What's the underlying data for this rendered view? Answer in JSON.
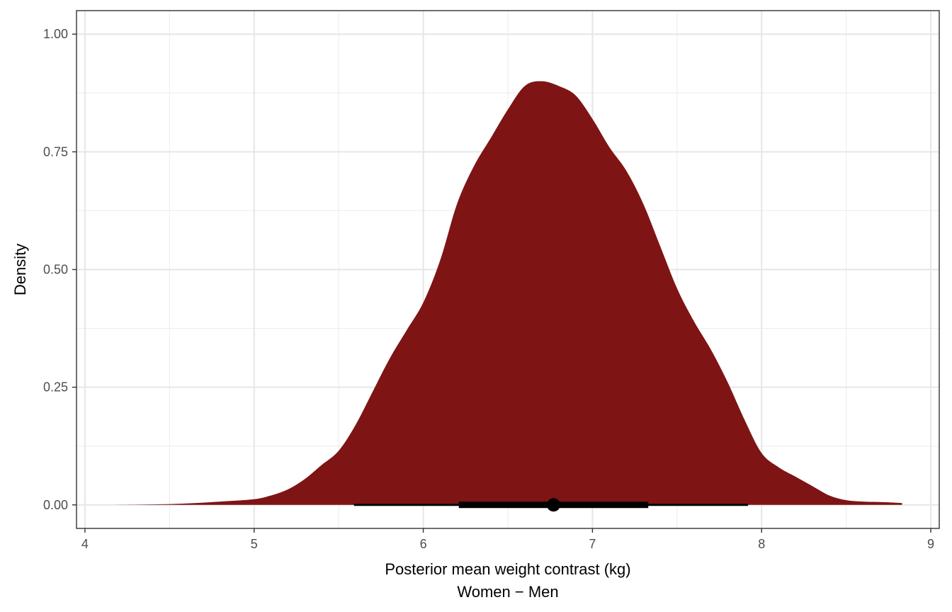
{
  "chart_data": {
    "type": "area",
    "xlabel": "Posterior mean weight contrast (kg)",
    "xlabel_line2": "Women − Men",
    "ylabel": "Density",
    "xlim": [
      3.95,
      9.05
    ],
    "ylim": [
      -0.05,
      1.05
    ],
    "x_ticks": [
      4,
      5,
      6,
      7,
      8,
      9
    ],
    "x_tick_labels": [
      "4",
      "5",
      "6",
      "7",
      "8",
      "9"
    ],
    "y_ticks": [
      0,
      0.25,
      0.5,
      0.75,
      1.0
    ],
    "y_tick_labels": [
      "0.00",
      "0.25",
      "0.50",
      "0.75",
      "1.00"
    ],
    "grid": true,
    "fill_color": "#7f1414",
    "density": {
      "x": [
        4.15,
        4.4,
        4.6,
        4.8,
        5.0,
        5.1,
        5.2,
        5.3,
        5.4,
        5.5,
        5.6,
        5.7,
        5.8,
        5.9,
        6.0,
        6.1,
        6.2,
        6.3,
        6.4,
        6.5,
        6.6,
        6.7,
        6.8,
        6.9,
        7.0,
        7.1,
        7.2,
        7.3,
        7.4,
        7.5,
        7.6,
        7.7,
        7.8,
        7.9,
        8.0,
        8.1,
        8.2,
        8.3,
        8.4,
        8.5,
        8.6,
        8.7,
        8.83
      ],
      "y": [
        0.0,
        0.001,
        0.003,
        0.007,
        0.012,
        0.02,
        0.033,
        0.055,
        0.085,
        0.115,
        0.17,
        0.24,
        0.31,
        0.37,
        0.43,
        0.52,
        0.64,
        0.72,
        0.78,
        0.84,
        0.89,
        0.9,
        0.89,
        0.87,
        0.82,
        0.76,
        0.71,
        0.64,
        0.55,
        0.46,
        0.39,
        0.33,
        0.26,
        0.18,
        0.11,
        0.08,
        0.06,
        0.04,
        0.02,
        0.01,
        0.007,
        0.006,
        0.004
      ]
    },
    "point_interval": {
      "point": 6.77,
      "interval_66": [
        6.21,
        7.33
      ],
      "interval_95": [
        5.59,
        7.92
      ]
    },
    "interval_color": "#000000"
  }
}
